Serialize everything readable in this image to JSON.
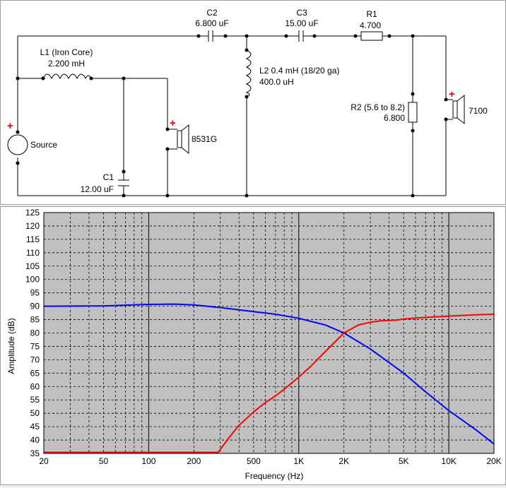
{
  "schematic": {
    "components": {
      "c2": {
        "name": "C2",
        "value": "6.800 uF"
      },
      "c3": {
        "name": "C3",
        "value": "15.00 uF"
      },
      "r1": {
        "name": "R1",
        "value": "4.700"
      },
      "l1": {
        "name": "L1 (Iron Core)",
        "value": "2.200 mH"
      },
      "l2": {
        "name": "L2 0.4 mH (18/20 ga)",
        "value": "400.0 uH"
      },
      "r2": {
        "name": "R2 (5.6 to 8.2)",
        "value": "6.800"
      },
      "c1": {
        "name": "C1",
        "value": "12.00 uF"
      },
      "source": {
        "name": "Source"
      },
      "woofer": {
        "name": "8531G"
      },
      "tweeter": {
        "name": "7100"
      }
    },
    "polarity_mark": "+"
  },
  "chart_data": {
    "type": "line",
    "xlabel": "Frequency (Hz)",
    "ylabel": "Amplitude (dB)",
    "x_scale": "log",
    "xlim": [
      20,
      20000
    ],
    "ylim": [
      35,
      125
    ],
    "x_ticks": [
      20,
      50,
      100,
      200,
      500,
      1000,
      2000,
      5000,
      10000,
      20000
    ],
    "x_tick_labels": [
      "20",
      "50",
      "100",
      "200",
      "500",
      "1K",
      "2K",
      "5K",
      "10K",
      "20K"
    ],
    "y_ticks": [
      35,
      40,
      45,
      50,
      55,
      60,
      65,
      70,
      75,
      80,
      85,
      90,
      95,
      100,
      105,
      110,
      115,
      120,
      125
    ],
    "grid": true,
    "plot_background": "#c0c0c0",
    "series": [
      {
        "color": "#0000ff",
        "x": [
          20,
          50,
          70,
          100,
          150,
          200,
          300,
          500,
          700,
          1000,
          1500,
          2000,
          3000,
          5000,
          7000,
          10000,
          15000,
          20000
        ],
        "y": [
          90,
          90.1,
          90.4,
          90.7,
          90.8,
          90.5,
          89.5,
          88,
          87,
          85.5,
          83,
          80,
          74,
          65,
          58,
          51,
          44,
          38.5
        ]
      },
      {
        "color": "#ff0000",
        "x": [
          20,
          100,
          200,
          290,
          300,
          350,
          400,
          500,
          600,
          700,
          800,
          1000,
          1200,
          1500,
          2000,
          2500,
          3000,
          3500,
          4500,
          5000,
          6000,
          7000,
          8000,
          10000,
          15000,
          20000
        ],
        "y": [
          35.4,
          35.4,
          35.4,
          35.4,
          36.5,
          41.5,
          45.5,
          50.5,
          54,
          56.5,
          59,
          63.5,
          67.5,
          73,
          80,
          83,
          84,
          84.5,
          84.8,
          85.2,
          85.6,
          85.8,
          86,
          86.3,
          86.8,
          87
        ]
      }
    ]
  }
}
